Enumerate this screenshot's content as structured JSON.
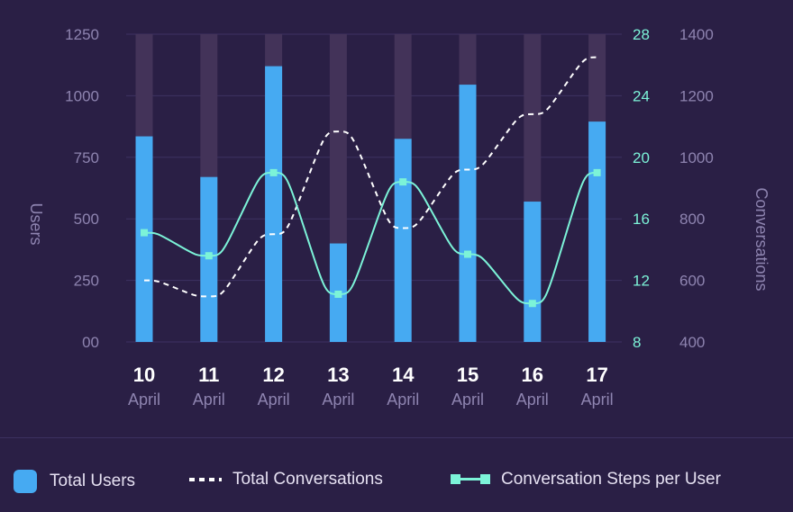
{
  "chart_data": {
    "type": "bar",
    "categories": [
      "10",
      "11",
      "12",
      "13",
      "14",
      "15",
      "16",
      "17"
    ],
    "category_sublabels": [
      "April",
      "April",
      "April",
      "April",
      "April",
      "April",
      "April",
      "April"
    ],
    "series": [
      {
        "name": "Total Users",
        "type": "bar",
        "axis": "left",
        "color": "#46aaf2",
        "values": [
          835,
          670,
          1120,
          400,
          825,
          1045,
          570,
          895
        ]
      },
      {
        "name": "Total Conversations",
        "type": "line",
        "axis": "right-outer",
        "color": "#ffffff",
        "style": "dashed",
        "values": [
          600,
          548,
          750,
          1084,
          770,
          960,
          1140,
          1325
        ]
      },
      {
        "name": "Conversation Steps per User",
        "type": "line",
        "axis": "right-inner",
        "color": "#7cf3d8",
        "markers": "square",
        "values": [
          15.1,
          13.6,
          19.0,
          11.1,
          18.4,
          13.7,
          10.5,
          19.0
        ]
      }
    ],
    "axes": {
      "left": {
        "label": "Users",
        "min": 0,
        "max": 1250,
        "ticks": [
          "00",
          "250",
          "500",
          "750",
          "1000",
          "1250"
        ]
      },
      "right_inner": {
        "label": "",
        "min": 8,
        "max": 28,
        "ticks": [
          "8",
          "12",
          "16",
          "20",
          "24",
          "28"
        ]
      },
      "right_outer": {
        "label": "Conversations",
        "min": 400,
        "max": 1400,
        "ticks": [
          "400",
          "600",
          "800",
          "1000",
          "1200",
          "1400"
        ]
      }
    },
    "bar_background_color": "#433359",
    "grid": true,
    "legend_position": "bottom"
  },
  "legend": {
    "users_label": "Total Users",
    "conversations_label": "Total Conversations",
    "steps_label": "Conversation Steps per User"
  }
}
